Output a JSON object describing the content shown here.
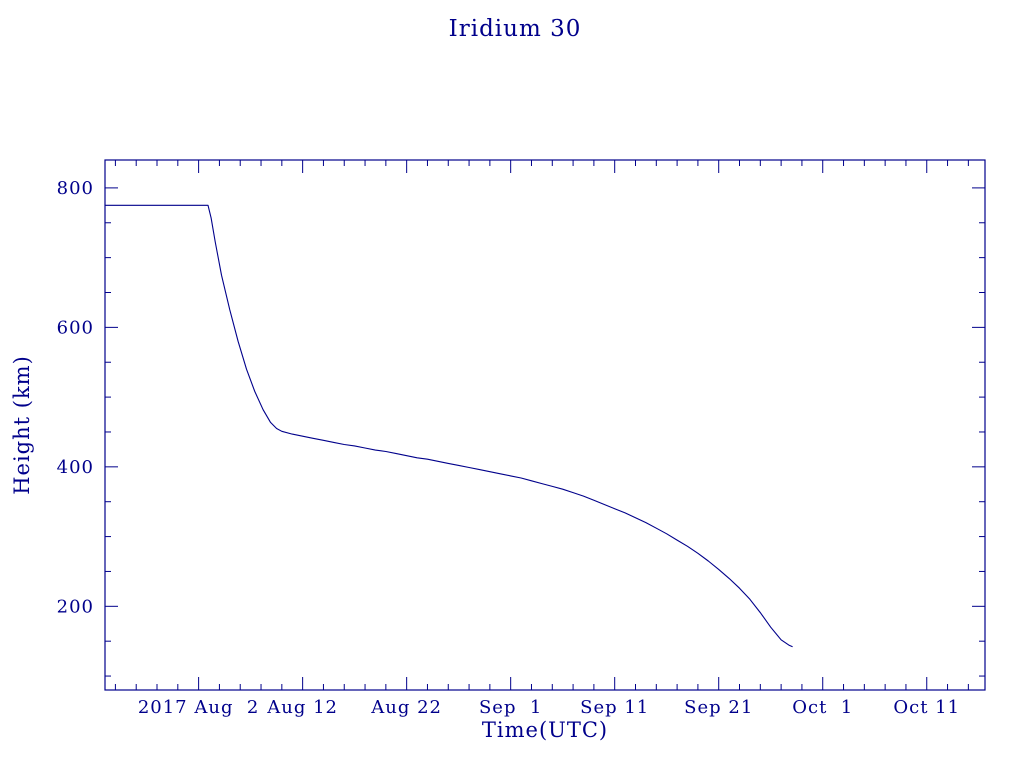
{
  "page": {
    "background": "#ffffff"
  },
  "chart_data": {
    "type": "line",
    "title": "Iridium 30",
    "xlabel": "Time(UTC)",
    "ylabel": "Height (km)",
    "line_color": "#00008b",
    "axis_color": "#00008b",
    "grid": false,
    "legend": false,
    "x_axis": {
      "unit": "days since 2017-07-23 00:00 UTC",
      "lim": [
        1,
        85.6
      ],
      "minor_tick_step": 2,
      "major_ticks": [
        {
          "value": 10,
          "label": "2017 Aug  2"
        },
        {
          "value": 20,
          "label": "Aug 12"
        },
        {
          "value": 30,
          "label": "Aug 22"
        },
        {
          "value": 40,
          "label": "Sep  1"
        },
        {
          "value": 50,
          "label": "Sep 11"
        },
        {
          "value": 60,
          "label": "Sep 21"
        },
        {
          "value": 70,
          "label": "Oct  1"
        },
        {
          "value": 80,
          "label": "Oct 11"
        }
      ]
    },
    "y_axis": {
      "lim": [
        80,
        840
      ],
      "minor_tick_step": 50,
      "major_ticks": [
        {
          "value": 200,
          "label": "200"
        },
        {
          "value": 400,
          "label": "400"
        },
        {
          "value": 600,
          "label": "600"
        },
        {
          "value": 800,
          "label": "800"
        }
      ]
    },
    "series": [
      {
        "points": [
          [
            1,
            775
          ],
          [
            3,
            775
          ],
          [
            5,
            775
          ],
          [
            7,
            775
          ],
          [
            9,
            775
          ],
          [
            10.9,
            775
          ],
          [
            11.2,
            757
          ],
          [
            11.6,
            722
          ],
          [
            12.2,
            675
          ],
          [
            13,
            625
          ],
          [
            13.8,
            580
          ],
          [
            14.6,
            540
          ],
          [
            15.4,
            508
          ],
          [
            16.2,
            482
          ],
          [
            16.9,
            464
          ],
          [
            17.5,
            455
          ],
          [
            18,
            451
          ],
          [
            19,
            447
          ],
          [
            20,
            444
          ],
          [
            21,
            441
          ],
          [
            22,
            438
          ],
          [
            23,
            435
          ],
          [
            24,
            432
          ],
          [
            25,
            430
          ],
          [
            26,
            427
          ],
          [
            27,
            424
          ],
          [
            28,
            422
          ],
          [
            29,
            419
          ],
          [
            30,
            416
          ],
          [
            31,
            413
          ],
          [
            32,
            411
          ],
          [
            33,
            408
          ],
          [
            34,
            405
          ],
          [
            35,
            402
          ],
          [
            36,
            399
          ],
          [
            37,
            396
          ],
          [
            38,
            393
          ],
          [
            39,
            390
          ],
          [
            40,
            387
          ],
          [
            41,
            384
          ],
          [
            42,
            380
          ],
          [
            43,
            376
          ],
          [
            44,
            372
          ],
          [
            45,
            368
          ],
          [
            46,
            363
          ],
          [
            47,
            358
          ],
          [
            48,
            352
          ],
          [
            49,
            346
          ],
          [
            50,
            340
          ],
          [
            51,
            334
          ],
          [
            52,
            327
          ],
          [
            53,
            320
          ],
          [
            54,
            312
          ],
          [
            55,
            304
          ],
          [
            56,
            295
          ],
          [
            57,
            286
          ],
          [
            58,
            276
          ],
          [
            59,
            265
          ],
          [
            60,
            253
          ],
          [
            61,
            240
          ],
          [
            62,
            226
          ],
          [
            63,
            210
          ],
          [
            64,
            191
          ],
          [
            65,
            170
          ],
          [
            66,
            152
          ],
          [
            66.8,
            144
          ],
          [
            67.1,
            142
          ]
        ]
      }
    ]
  }
}
